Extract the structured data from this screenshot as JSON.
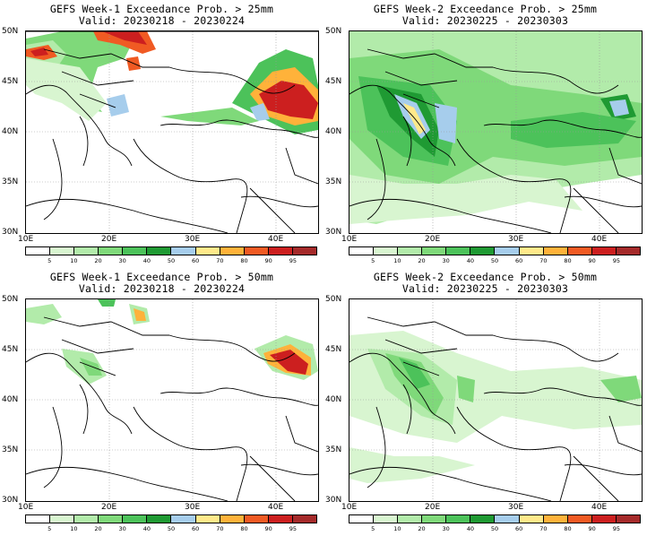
{
  "panels": [
    {
      "id": "p1",
      "title_line1": "GEFS Week-1 Exceedance Prob. > 25mm",
      "title_line2": "Valid: 20230218 - 20230224"
    },
    {
      "id": "p2",
      "title_line1": "GEFS Week-2 Exceedance Prob. > 25mm",
      "title_line2": "Valid: 20230225 - 20230303"
    },
    {
      "id": "p3",
      "title_line1": "GEFS Week-1 Exceedance Prob. > 50mm",
      "title_line2": "Valid: 20230218 - 20230224"
    },
    {
      "id": "p4",
      "title_line1": "GEFS Week-2 Exceedance Prob. > 50mm",
      "title_line2": "Valid: 20230225 - 20230303"
    }
  ],
  "lat_labels": [
    "50N",
    "45N",
    "40N",
    "35N",
    "30N"
  ],
  "lon_labels": [
    "10E",
    "20E",
    "30E",
    "40E"
  ],
  "colorbar": {
    "ticks": [
      "5",
      "10",
      "20",
      "30",
      "40",
      "50",
      "60",
      "70",
      "80",
      "90",
      "95"
    ],
    "colors": [
      "#ffffff",
      "#d8f5d0",
      "#b2ebaa",
      "#7fd97a",
      "#4cc25a",
      "#1f9a33",
      "#a6cdec",
      "#ffe98a",
      "#ffb23a",
      "#f05a23",
      "#cc1f1f",
      "#a52a2a"
    ]
  }
}
